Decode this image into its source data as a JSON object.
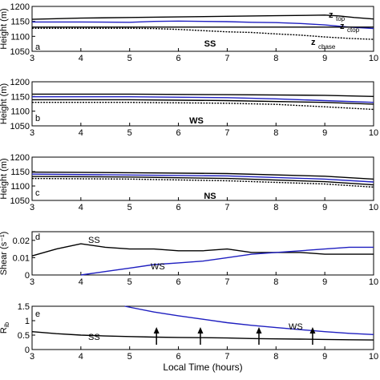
{
  "chart_data": [
    {
      "panel_letter": "a",
      "type": "line",
      "ylabel": "Height (m)",
      "ylim": [
        1050,
        1200
      ],
      "yticks": [
        "1050",
        "1100",
        "1150",
        "1200"
      ],
      "xlim": [
        3,
        10
      ],
      "xticks": [
        "3",
        "4",
        "5",
        "6",
        "7",
        "8",
        "9",
        "10"
      ],
      "annotation": "SS",
      "series": [
        {
          "name": "z_top",
          "color": "#000000",
          "style": "solid",
          "x": [
            3.0,
            4.0,
            5.0,
            5.5,
            6.0,
            7.0,
            8.0,
            8.6,
            9.0,
            9.3,
            9.6,
            10.0
          ],
          "y": [
            1157,
            1161,
            1163,
            1164,
            1165,
            1167,
            1169,
            1170,
            1171,
            1168,
            1163,
            1158
          ]
        },
        {
          "name": "z_ctop",
          "color": "#1f1fc0",
          "style": "solid",
          "x": [
            3.0,
            4.0,
            5.0,
            5.5,
            6.0,
            7.0,
            7.5,
            8.0,
            8.5,
            9.0,
            9.5,
            10.0
          ],
          "y": [
            1148,
            1148,
            1147,
            1150,
            1151,
            1149,
            1147,
            1146,
            1143,
            1138,
            1131,
            1126
          ]
        },
        {
          "name": "z_base",
          "color": "#000000",
          "style": "dotted",
          "x": [
            3.0,
            4.0,
            5.0,
            5.5,
            6.0,
            6.5,
            7.0,
            7.5,
            8.0,
            8.5,
            9.0,
            9.5,
            10.0
          ],
          "y": [
            1127,
            1127,
            1127,
            1126,
            1123,
            1119,
            1115,
            1113,
            1108,
            1104,
            1098,
            1093,
            1090
          ]
        },
        {
          "name": "z_cbase",
          "color": "#000000",
          "style": "solid",
          "x": [
            3.0,
            5.0,
            5.0,
            10.0
          ],
          "y": [
            1131,
            1131,
            1131,
            1131
          ]
        }
      ],
      "series_labels": [
        "z",
        "top",
        "z",
        "ctop",
        "z",
        "cbase"
      ]
    },
    {
      "panel_letter": "b",
      "type": "line",
      "ylabel": "Height (m)",
      "ylim": [
        1050,
        1200
      ],
      "yticks": [
        "1050",
        "1100",
        "1150",
        "1200"
      ],
      "xlim": [
        3,
        10
      ],
      "xticks": [
        "3",
        "4",
        "5",
        "6",
        "7",
        "8",
        "9",
        "10"
      ],
      "annotation": "WS",
      "series": [
        {
          "name": "z_top",
          "color": "#000000",
          "style": "solid",
          "x": [
            3.0,
            5.0,
            7.0,
            9.0,
            10.0
          ],
          "y": [
            1158,
            1158,
            1156,
            1154,
            1150
          ]
        },
        {
          "name": "z_ctop",
          "color": "#1f1fc0",
          "style": "solid",
          "x": [
            3.0,
            5.0,
            7.0,
            8.0,
            9.0,
            10.0
          ],
          "y": [
            1149,
            1149,
            1146,
            1142,
            1136,
            1130
          ]
        },
        {
          "name": "z_cbase",
          "color": "#000000",
          "style": "solid",
          "x": [
            3.0,
            5.0,
            7.0,
            9.0,
            10.0
          ],
          "y": [
            1139,
            1139,
            1136,
            1130,
            1124
          ]
        },
        {
          "name": "z_base",
          "color": "#000000",
          "style": "dotted",
          "x": [
            3.0,
            5.0,
            7.0,
            8.0,
            9.0,
            10.0
          ],
          "y": [
            1130,
            1130,
            1127,
            1123,
            1115,
            1106
          ]
        }
      ]
    },
    {
      "panel_letter": "c",
      "type": "line",
      "ylabel": "Height (m)",
      "ylim": [
        1050,
        1200
      ],
      "yticks": [
        "1050",
        "1100",
        "1150",
        "1200"
      ],
      "xlim": [
        3,
        10
      ],
      "xticks": [
        "3",
        "4",
        "5",
        "6",
        "7",
        "8",
        "9",
        "10"
      ],
      "annotation": "NS",
      "series": [
        {
          "name": "z_top",
          "color": "#000000",
          "style": "solid",
          "x": [
            3.0,
            5.0,
            7.0,
            9.0,
            10.0
          ],
          "y": [
            1148,
            1146,
            1143,
            1134,
            1124
          ]
        },
        {
          "name": "z_ctop",
          "color": "#1f1fc0",
          "style": "solid",
          "x": [
            3.0,
            5.0,
            7.0,
            9.0,
            10.0
          ],
          "y": [
            1141,
            1138,
            1135,
            1124,
            1114
          ]
        },
        {
          "name": "z_cbase",
          "color": "#000000",
          "style": "solid",
          "x": [
            3.0,
            5.0,
            7.0,
            9.0,
            10.0
          ],
          "y": [
            1133,
            1131,
            1126,
            1115,
            1104
          ]
        },
        {
          "name": "z_base",
          "color": "#000000",
          "style": "dotted",
          "x": [
            3.0,
            5.0,
            7.0,
            9.0,
            10.0
          ],
          "y": [
            1126,
            1124,
            1118,
            1107,
            1096
          ]
        }
      ]
    },
    {
      "panel_letter": "d",
      "type": "line",
      "ylabel": "Shear (s⁻¹)",
      "ylim": [
        0,
        0.025
      ],
      "yticks": [
        "0",
        "0.01",
        "0.02"
      ],
      "xlim": [
        3,
        10
      ],
      "xticks": [
        "3",
        "4",
        "5",
        "6",
        "7",
        "8",
        "9",
        "10"
      ],
      "series": [
        {
          "name": "SS",
          "color": "#000000",
          "style": "solid",
          "x": [
            3.0,
            3.5,
            4.0,
            4.5,
            5.0,
            5.5,
            6.0,
            6.5,
            7.0,
            7.5,
            8.0,
            8.5,
            9.0,
            9.5,
            10.0
          ],
          "y": [
            0.011,
            0.015,
            0.018,
            0.016,
            0.015,
            0.015,
            0.014,
            0.014,
            0.015,
            0.013,
            0.013,
            0.013,
            0.012,
            0.012,
            0.012
          ]
        },
        {
          "name": "WS",
          "color": "#1f1fc0",
          "style": "solid",
          "x": [
            4.0,
            4.5,
            5.0,
            5.5,
            6.0,
            6.5,
            7.0,
            7.5,
            8.0,
            8.5,
            9.0,
            9.5,
            10.0
          ],
          "y": [
            0.0,
            0.002,
            0.004,
            0.006,
            0.007,
            0.008,
            0.01,
            0.012,
            0.013,
            0.014,
            0.015,
            0.016,
            0.016
          ]
        }
      ],
      "series_labels": [
        "SS",
        "WS"
      ]
    },
    {
      "panel_letter": "e",
      "type": "line",
      "ylabel": "R_ib",
      "ylabel_main": "R",
      "ylabel_sub": "ib",
      "ylim": [
        0,
        1.5
      ],
      "yticks": [
        "0",
        "0.5",
        "1",
        "1.5"
      ],
      "xlim": [
        3,
        10
      ],
      "xticks": [
        "3",
        "4",
        "5",
        "6",
        "7",
        "8",
        "9",
        "10"
      ],
      "xlabel": "Local Time (hours)",
      "series": [
        {
          "name": "WS",
          "color": "#1f1fc0",
          "style": "solid",
          "x": [
            4.9,
            5.5,
            6.0,
            6.5,
            7.0,
            7.5,
            8.0,
            8.5,
            9.0,
            9.5,
            10.0
          ],
          "y": [
            1.5,
            1.3,
            1.17,
            1.05,
            0.93,
            0.84,
            0.76,
            0.69,
            0.62,
            0.56,
            0.52
          ]
        },
        {
          "name": "SS",
          "color": "#000000",
          "style": "solid",
          "x": [
            3.0,
            3.5,
            4.0,
            4.5,
            5.0,
            5.5,
            6.0,
            6.5,
            7.0,
            7.5,
            8.0,
            8.5,
            9.0,
            9.5,
            10.0
          ],
          "y": [
            0.62,
            0.55,
            0.5,
            0.47,
            0.45,
            0.43,
            0.42,
            0.41,
            0.4,
            0.38,
            0.37,
            0.36,
            0.35,
            0.34,
            0.33
          ]
        }
      ],
      "series_labels": [
        "WS",
        "SS"
      ],
      "arrows_x": [
        5.55,
        6.45,
        7.65,
        8.75
      ]
    }
  ]
}
